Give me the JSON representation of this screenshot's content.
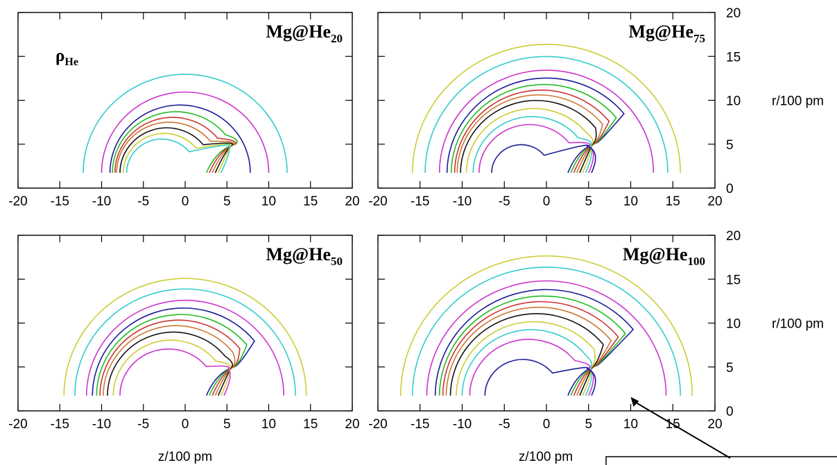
{
  "figure": {
    "axis_labels": {
      "x": "z/100 pm",
      "y": "r/100 pm"
    },
    "density_label": {
      "main": "ρ",
      "sub": "He"
    }
  },
  "chart_data": [
    {
      "type": "contour",
      "panel": "top-left",
      "title": "Mg@He20",
      "title_parts": {
        "main": "Mg@He",
        "sub": "20"
      },
      "xlabel": "",
      "ylabel": "",
      "xlim": [
        -20,
        20
      ],
      "ylim": [
        0,
        20
      ],
      "xticks": [
        -20,
        -15,
        -10,
        -5,
        0,
        5,
        10,
        15,
        20
      ],
      "yticks": [
        0,
        5,
        10,
        15,
        20
      ],
      "show_xtick_labels": true,
      "show_ytick_labels": false,
      "show_density_label": true,
      "has_arrow": false,
      "contours": [
        {
          "color": "#33cccc",
          "radius": 12.2,
          "cx": 0.0
        },
        {
          "color": "#cc33cc",
          "radius": 10.0,
          "cx": 0.0
        },
        {
          "color": "#1a1a99",
          "radius": 8.4,
          "cx": -0.6
        },
        {
          "color": "#22bb22",
          "radius": 7.6,
          "cx": -1.1
        },
        {
          "color": "#cc3333",
          "radius": 6.9,
          "cx": -1.5
        },
        {
          "color": "#cc7733",
          "radius": 6.3,
          "cx": -1.9
        },
        {
          "color": "#111111",
          "radius": 5.6,
          "cx": -2.2
        },
        {
          "color": "#cccc33",
          "radius": 4.9,
          "cx": -2.5
        },
        {
          "color": "#33cccc",
          "radius": 4.2,
          "cx": -2.8
        }
      ]
    },
    {
      "type": "contour",
      "panel": "top-right",
      "title": "Mg@He75",
      "title_parts": {
        "main": "Mg@He",
        "sub": "75"
      },
      "xlabel": "",
      "ylabel": "r/100 pm",
      "xlim": [
        -20,
        20
      ],
      "ylim": [
        0,
        20
      ],
      "xticks": [
        -20,
        -15,
        -10,
        -5,
        0,
        5,
        10,
        15,
        20
      ],
      "yticks": [
        0,
        5,
        10,
        15,
        20
      ],
      "show_xtick_labels": true,
      "show_ytick_labels": true,
      "show_density_label": false,
      "has_arrow": false,
      "contours": [
        {
          "color": "#cccc33",
          "radius": 15.9,
          "cx": 0.0
        },
        {
          "color": "#33cccc",
          "radius": 14.4,
          "cx": 0.0
        },
        {
          "color": "#cc33cc",
          "radius": 12.7,
          "cx": 0.0
        },
        {
          "color": "#1a1a99",
          "radius": 11.8,
          "cx": 0.0
        },
        {
          "color": "#22bb22",
          "radius": 11.0,
          "cx": -0.3
        },
        {
          "color": "#cc3333",
          "radius": 10.3,
          "cx": -0.6
        },
        {
          "color": "#cc7733",
          "radius": 9.7,
          "cx": -0.9
        },
        {
          "color": "#111111",
          "radius": 9.0,
          "cx": -1.2
        },
        {
          "color": "#cccc33",
          "radius": 8.0,
          "cx": -1.5
        },
        {
          "color": "#33cccc",
          "radius": 7.0,
          "cx": -1.7
        },
        {
          "color": "#cc33cc",
          "radius": 6.0,
          "cx": -2.0
        },
        {
          "color": "#1a1a99",
          "radius": 3.5,
          "cx": -3.0
        }
      ]
    },
    {
      "type": "contour",
      "panel": "bottom-left",
      "title": "Mg@He50",
      "title_parts": {
        "main": "Mg@He",
        "sub": "50"
      },
      "xlabel": "z/100 pm",
      "ylabel": "",
      "xlim": [
        -20,
        20
      ],
      "ylim": [
        0,
        20
      ],
      "xticks": [
        -20,
        -15,
        -10,
        -5,
        0,
        5,
        10,
        15,
        20
      ],
      "yticks": [
        0,
        5,
        10,
        15,
        20
      ],
      "show_xtick_labels": true,
      "show_ytick_labels": false,
      "show_density_label": false,
      "has_arrow": false,
      "contours": [
        {
          "color": "#cccc33",
          "radius": 14.5,
          "cx": 0.0
        },
        {
          "color": "#33cccc",
          "radius": 13.2,
          "cx": 0.0
        },
        {
          "color": "#cc33cc",
          "radius": 11.8,
          "cx": 0.0
        },
        {
          "color": "#1a1a99",
          "radius": 10.9,
          "cx": -0.2
        },
        {
          "color": "#22bb22",
          "radius": 10.1,
          "cx": -0.5
        },
        {
          "color": "#cc3333",
          "radius": 9.4,
          "cx": -0.8
        },
        {
          "color": "#cc7733",
          "radius": 8.7,
          "cx": -1.1
        },
        {
          "color": "#111111",
          "radius": 7.9,
          "cx": -1.4
        },
        {
          "color": "#cccc33",
          "radius": 6.9,
          "cx": -1.7
        },
        {
          "color": "#cc33cc",
          "radius": 5.8,
          "cx": -2.0
        }
      ]
    },
    {
      "type": "contour",
      "panel": "bottom-right",
      "title": "Mg@He100",
      "title_parts": {
        "main": "Mg@He",
        "sub": "100"
      },
      "xlabel": "z/100 pm",
      "ylabel": "r/100 pm",
      "xlim": [
        -20,
        20
      ],
      "ylim": [
        0,
        20
      ],
      "xticks": [
        -20,
        -15,
        -10,
        -5,
        0,
        5,
        10,
        15,
        20
      ],
      "yticks": [
        0,
        5,
        10,
        15,
        20
      ],
      "show_xtick_labels": true,
      "show_ytick_labels": true,
      "show_density_label": false,
      "has_arrow": true,
      "contours": [
        {
          "color": "#cccc33",
          "radius": 17.3,
          "cx": 0.0
        },
        {
          "color": "#33cccc",
          "radius": 15.9,
          "cx": 0.0
        },
        {
          "color": "#cc33cc",
          "radius": 14.2,
          "cx": 0.0
        },
        {
          "color": "#1a1a99",
          "radius": 13.2,
          "cx": 0.0
        },
        {
          "color": "#22bb22",
          "radius": 12.4,
          "cx": -0.3
        },
        {
          "color": "#cc3333",
          "radius": 11.7,
          "cx": -0.6
        },
        {
          "color": "#cc7733",
          "radius": 11.0,
          "cx": -0.9
        },
        {
          "color": "#111111",
          "radius": 10.2,
          "cx": -1.2
        },
        {
          "color": "#cccc33",
          "radius": 9.2,
          "cx": -1.5
        },
        {
          "color": "#33cccc",
          "radius": 8.2,
          "cx": -1.8
        },
        {
          "color": "#cc33cc",
          "radius": 7.0,
          "cx": -2.1
        },
        {
          "color": "#1a1a99",
          "radius": 4.5,
          "cx": -2.8
        }
      ]
    }
  ]
}
